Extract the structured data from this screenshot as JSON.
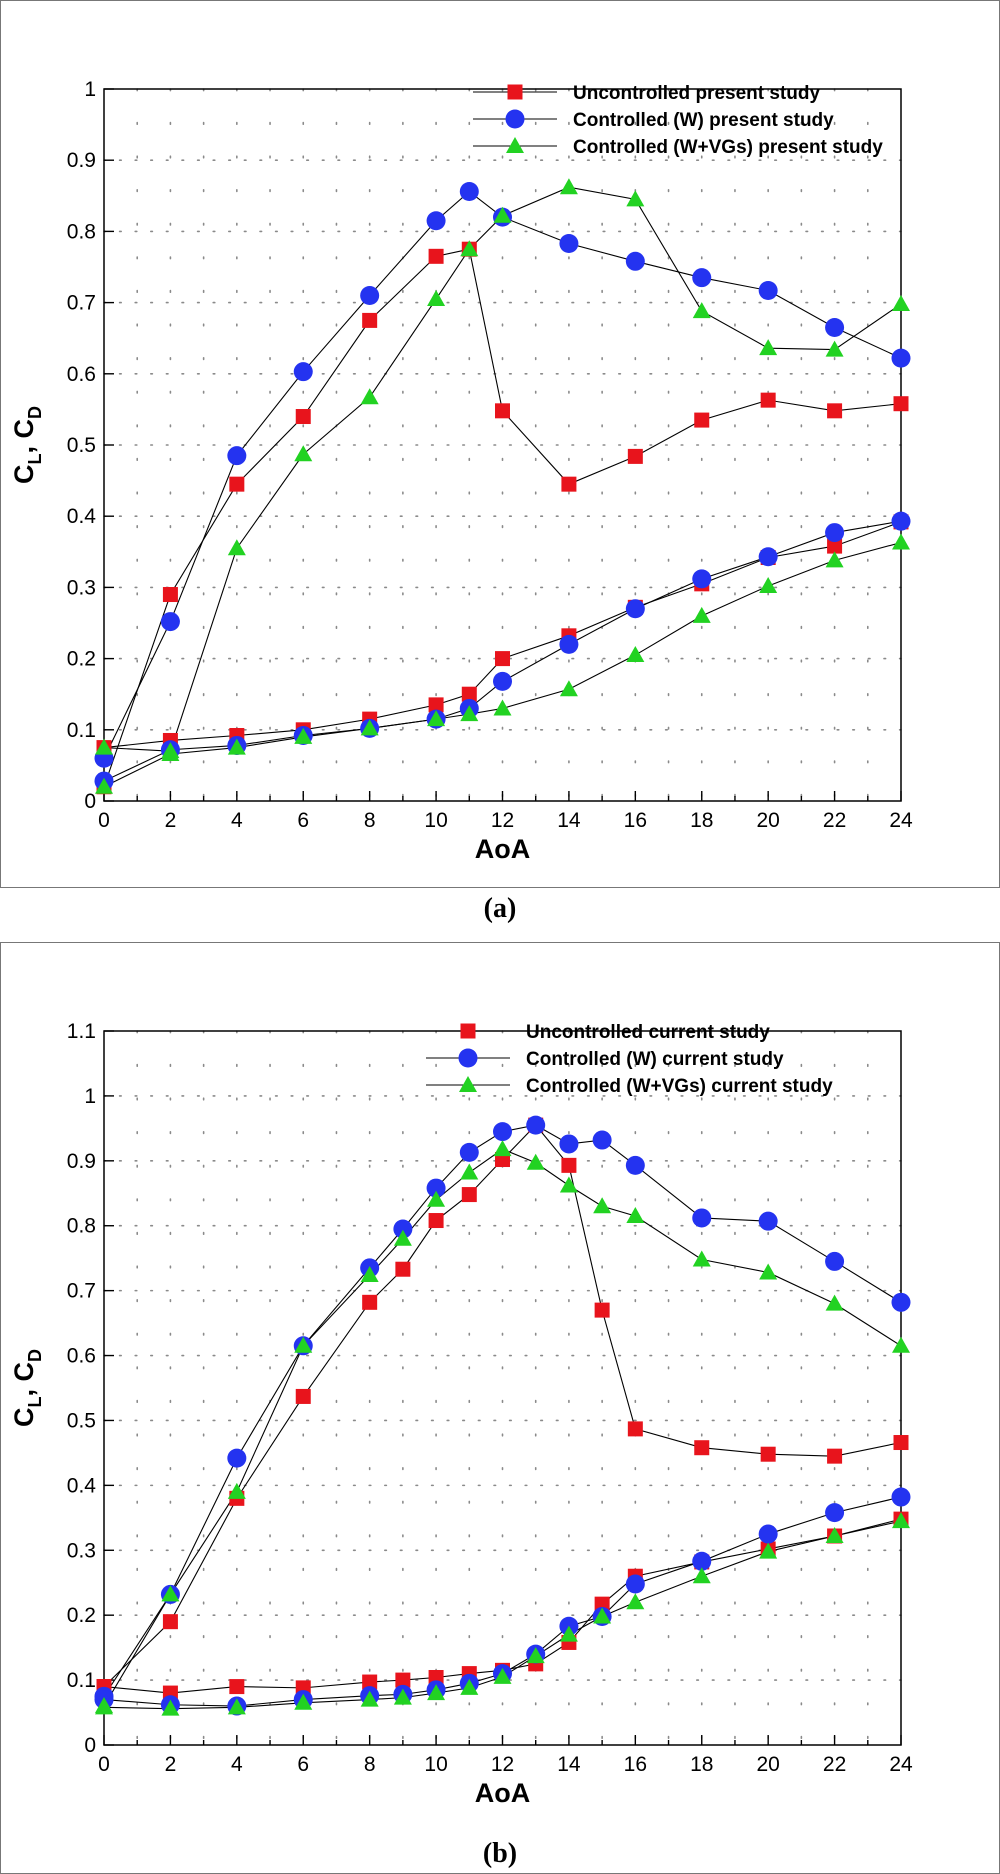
{
  "chart_data": [
    {
      "type": "line",
      "panel_label": "(a)",
      "xlabel": "AoA",
      "ylabel": "C",
      "ylabel_sub_1": "L",
      "ylabel_sep": ", C",
      "ylabel_sub_2": "D",
      "xlim": [
        0,
        24
      ],
      "ylim": [
        0,
        1
      ],
      "x_ticks": [
        0,
        2,
        4,
        6,
        8,
        10,
        12,
        14,
        16,
        18,
        20,
        22,
        24
      ],
      "x_tick_labels": [
        "0",
        "2",
        "4",
        "6",
        "8",
        "10",
        "12",
        "14",
        "16",
        "18",
        "20",
        "22",
        "24"
      ],
      "y_ticks": [
        0,
        0.1,
        0.2,
        0.3,
        0.4,
        0.5,
        0.6,
        0.7,
        0.8,
        0.9,
        1
      ],
      "y_tick_labels": [
        "0",
        "0.1",
        "0.2",
        "0.3",
        "0.4",
        "0.5",
        "0.6",
        "0.7",
        "0.8",
        "0.9",
        "1"
      ],
      "grid": "dotted",
      "legend_position": "top-right",
      "series": [
        {
          "name": "Uncontrolled present study",
          "marker": "square",
          "color": "#e8141c",
          "lift": {
            "x": [
              0,
              2,
              4,
              6,
              8,
              10,
              11,
              12,
              14,
              16,
              18,
              20,
              22,
              24
            ],
            "y": [
              0.02,
              0.29,
              0.445,
              0.54,
              0.675,
              0.765,
              0.775,
              0.548,
              0.445,
              0.484,
              0.535,
              0.563,
              0.548,
              0.558
            ]
          },
          "drag": {
            "x": [
              0,
              2,
              4,
              6,
              8,
              10,
              11,
              12,
              14,
              16,
              18,
              20,
              22,
              24
            ],
            "y": [
              0.075,
              0.085,
              0.092,
              0.1,
              0.115,
              0.135,
              0.15,
              0.2,
              0.232,
              0.272,
              0.305,
              0.342,
              0.358,
              0.392
            ]
          }
        },
        {
          "name": "Controlled (W) present study",
          "marker": "circle",
          "color": "#2433f0",
          "lift": {
            "x": [
              0,
              2,
              4,
              6,
              8,
              10,
              11,
              12,
              14,
              16,
              18,
              20,
              22,
              24
            ],
            "y": [
              0.06,
              0.252,
              0.485,
              0.603,
              0.71,
              0.815,
              0.856,
              0.82,
              0.783,
              0.758,
              0.735,
              0.717,
              0.665,
              0.622
            ]
          },
          "drag": {
            "x": [
              0,
              2,
              4,
              6,
              8,
              10,
              11,
              12,
              14,
              16,
              18,
              20,
              22,
              24
            ],
            "y": [
              0.028,
              0.072,
              0.078,
              0.092,
              0.102,
              0.115,
              0.13,
              0.168,
              0.22,
              0.27,
              0.312,
              0.343,
              0.377,
              0.393
            ]
          }
        },
        {
          "name": "Controlled (W+VGs) present study",
          "marker": "triangle",
          "color": "#22d222",
          "lift": {
            "x": [
              0,
              2,
              4,
              6,
              8,
              10,
              11,
              12,
              14,
              16,
              18,
              20,
              22,
              24
            ],
            "y": [
              0.075,
              0.07,
              0.355,
              0.487,
              0.567,
              0.705,
              0.775,
              0.822,
              0.862,
              0.845,
              0.688,
              0.636,
              0.634,
              0.698
            ]
          },
          "drag": {
            "x": [
              0,
              2,
              4,
              6,
              8,
              10,
              11,
              12,
              14,
              16,
              18,
              20,
              22,
              24
            ],
            "y": [
              0.02,
              0.066,
              0.075,
              0.09,
              0.102,
              0.115,
              0.122,
              0.13,
              0.157,
              0.205,
              0.26,
              0.302,
              0.338,
              0.363
            ]
          }
        }
      ]
    },
    {
      "type": "line",
      "panel_label": "(b)",
      "xlabel": "AoA",
      "ylabel": "C",
      "ylabel_sub_1": "L",
      "ylabel_sep": ", C",
      "ylabel_sub_2": "D",
      "xlim": [
        0,
        24
      ],
      "ylim": [
        0,
        1.1
      ],
      "x_ticks": [
        0,
        2,
        4,
        6,
        8,
        10,
        12,
        14,
        16,
        18,
        20,
        22,
        24
      ],
      "x_tick_labels": [
        "0",
        "2",
        "4",
        "6",
        "8",
        "10",
        "12",
        "14",
        "16",
        "18",
        "20",
        "22",
        "24"
      ],
      "y_ticks": [
        0,
        0.1,
        0.2,
        0.3,
        0.4,
        0.5,
        0.6,
        0.7,
        0.8,
        0.9,
        1,
        1.1
      ],
      "y_tick_labels": [
        "0",
        "0.1",
        "0.2",
        "0.3",
        "0.4",
        "0.5",
        "0.6",
        "0.7",
        "0.8",
        "0.9",
        "1",
        "1.1"
      ],
      "grid": "dotted",
      "legend_position": "top-right",
      "series": [
        {
          "name": "Uncontrolled current study",
          "marker": "square",
          "color": "#e8141c",
          "lift": {
            "x": [
              0,
              2,
              4,
              6,
              8,
              9,
              10,
              11,
              12,
              13,
              14,
              15,
              16,
              18,
              20,
              22,
              24
            ],
            "y": [
              0.09,
              0.19,
              0.38,
              0.537,
              0.682,
              0.733,
              0.808,
              0.848,
              0.902,
              0.955,
              0.893,
              0.67,
              0.487,
              0.458,
              0.448,
              0.445,
              0.466
            ]
          },
          "drag": {
            "x": [
              0,
              2,
              4,
              6,
              8,
              9,
              10,
              11,
              12,
              13,
              14,
              15,
              16,
              18,
              20,
              22,
              24
            ],
            "y": [
              0.09,
              0.08,
              0.09,
              0.088,
              0.097,
              0.1,
              0.104,
              0.11,
              0.115,
              0.125,
              0.158,
              0.217,
              0.26,
              0.282,
              0.302,
              0.322,
              0.348
            ]
          }
        },
        {
          "name": "Controlled (W) current study",
          "marker": "circle",
          "color": "#2433f0",
          "lift": {
            "x": [
              0,
              2,
              4,
              6,
              8,
              9,
              10,
              11,
              12,
              13,
              14,
              15,
              16,
              18,
              20,
              22,
              24
            ],
            "y": [
              0.075,
              0.232,
              0.442,
              0.615,
              0.735,
              0.795,
              0.858,
              0.913,
              0.945,
              0.955,
              0.926,
              0.932,
              0.893,
              0.812,
              0.807,
              0.745,
              0.682
            ]
          },
          "drag": {
            "x": [
              0,
              2,
              4,
              6,
              8,
              9,
              10,
              11,
              12,
              13,
              14,
              15,
              16,
              18,
              20,
              22,
              24
            ],
            "y": [
              0.07,
              0.062,
              0.06,
              0.07,
              0.076,
              0.078,
              0.085,
              0.095,
              0.11,
              0.14,
              0.183,
              0.198,
              0.248,
              0.283,
              0.325,
              0.358,
              0.382
            ]
          }
        },
        {
          "name": "Controlled (W+VGs) current study",
          "marker": "triangle",
          "color": "#22d222",
          "lift": {
            "x": [
              0,
              2,
              4,
              6,
              8,
              9,
              10,
              11,
              12,
              13,
              14,
              15,
              16,
              18,
              20,
              22,
              24
            ],
            "y": [
              0.06,
              0.232,
              0.39,
              0.615,
              0.724,
              0.78,
              0.84,
              0.882,
              0.918,
              0.897,
              0.862,
              0.83,
              0.815,
              0.748,
              0.728,
              0.68,
              0.615
            ]
          },
          "drag": {
            "x": [
              0,
              2,
              4,
              6,
              8,
              9,
              10,
              11,
              12,
              13,
              14,
              15,
              16,
              18,
              20,
              22,
              24
            ],
            "y": [
              0.058,
              0.056,
              0.058,
              0.065,
              0.07,
              0.073,
              0.08,
              0.088,
              0.105,
              0.137,
              0.17,
              0.198,
              0.22,
              0.26,
              0.298,
              0.322,
              0.345
            ]
          }
        }
      ]
    }
  ]
}
